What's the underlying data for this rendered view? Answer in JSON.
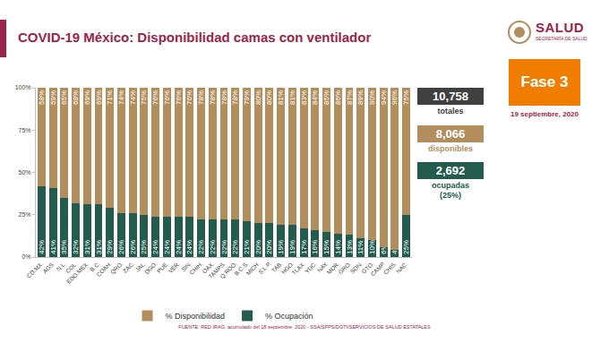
{
  "chart_data": {
    "type": "bar",
    "title": "COVID-19 México: Disponibilidad camas con ventilador",
    "categories": [
      "CD.MX.",
      "AGS.",
      "N.L.",
      "COL.",
      "EDO.MEX.",
      "B.C.",
      "COAH.",
      "QRO.",
      "ZAC.",
      "JAL.",
      "DGO.",
      "PUE.",
      "VER.",
      "SIN.",
      "CHIH.",
      "OAX.",
      "TAMPS.",
      "Q.ROO.",
      "B.C.S.",
      "MICH.",
      "S.L.P.",
      "TAB.",
      "HGO.",
      "TLAX.",
      "YUC.",
      "NAY.",
      "MOR.",
      "GRO.",
      "SON.",
      "GTO.",
      "CAMP.",
      "CHIS.",
      "NAC."
    ],
    "series": [
      {
        "name": "% Ocupación",
        "color": "#235b4e",
        "values": [
          42,
          41,
          35,
          32,
          31,
          31,
          29,
          26,
          26,
          25,
          24,
          24,
          24,
          24,
          22,
          22,
          22,
          22,
          21,
          20,
          20,
          19,
          19,
          17,
          16,
          15,
          14,
          13,
          11,
          10,
          6,
          4,
          25
        ],
        "value_labels": [
          "42%",
          "41%",
          "35%",
          "32%",
          "31%",
          "31%",
          "29%",
          "26%",
          "26%",
          "25%",
          "24%",
          "24%",
          "24%",
          "24%",
          "22%",
          "22%",
          "22%",
          "22%",
          "21%",
          "20%",
          "20%",
          "19%",
          "19%",
          "17%",
          "16%",
          "15%",
          "14%",
          "13%",
          "11%",
          "10%",
          "6%",
          "4%",
          "25%"
        ]
      },
      {
        "name": "% Disponibilidad",
        "color": "#b38e5d",
        "values": [
          58,
          59,
          65,
          68,
          69,
          69,
          71,
          74,
          74,
          75,
          76,
          76,
          76,
          76,
          78,
          78,
          78,
          78,
          79,
          80,
          80,
          81,
          81,
          83,
          84,
          85,
          86,
          87,
          89,
          90,
          94,
          96,
          75
        ],
        "value_labels": [
          "58%",
          "59%",
          "65%",
          "68%",
          "69%",
          "69%",
          "71%",
          "74%",
          "74%",
          "75%",
          "76%",
          "76%",
          "76%",
          "76%",
          "78%",
          "78%",
          "78%",
          "78%",
          "79%",
          "80%",
          "80%",
          "81%",
          "81%",
          "83%",
          "84%",
          "85%",
          "86%",
          "87%",
          "89%",
          "90%",
          "94%",
          "96%",
          "75%"
        ]
      }
    ],
    "ylim": [
      0,
      100
    ],
    "yticks": [
      {
        "value": 0,
        "label": "0%"
      },
      {
        "value": 25,
        "label": "25%"
      },
      {
        "value": 50,
        "label": "50%"
      },
      {
        "value": 75,
        "label": "75%"
      },
      {
        "value": 100,
        "label": "100%"
      }
    ],
    "stacked": true,
    "data_labels": true,
    "grid": false,
    "legend": "bottom"
  },
  "page": {
    "logo": {
      "name": "SALUD",
      "subtitle": "SECRETARÍA DE SALUD"
    },
    "phase": "Fase 3",
    "date": "19 septiembre, 2020",
    "stats": [
      {
        "value": "10,758",
        "label": "totales",
        "color": "#404040"
      },
      {
        "value": "8,066",
        "label": "disponibles",
        "color": "#b38e5d"
      },
      {
        "value": "2,692",
        "label": "ocupadas (25%)",
        "color": "#235b4e"
      }
    ],
    "source": "FUENTE: RED IRAG, acumulado del 18 septiembre, 2020  -  SSA/SPPS/DGTI/SERVICIOS DE SALUD ESTATALES"
  }
}
